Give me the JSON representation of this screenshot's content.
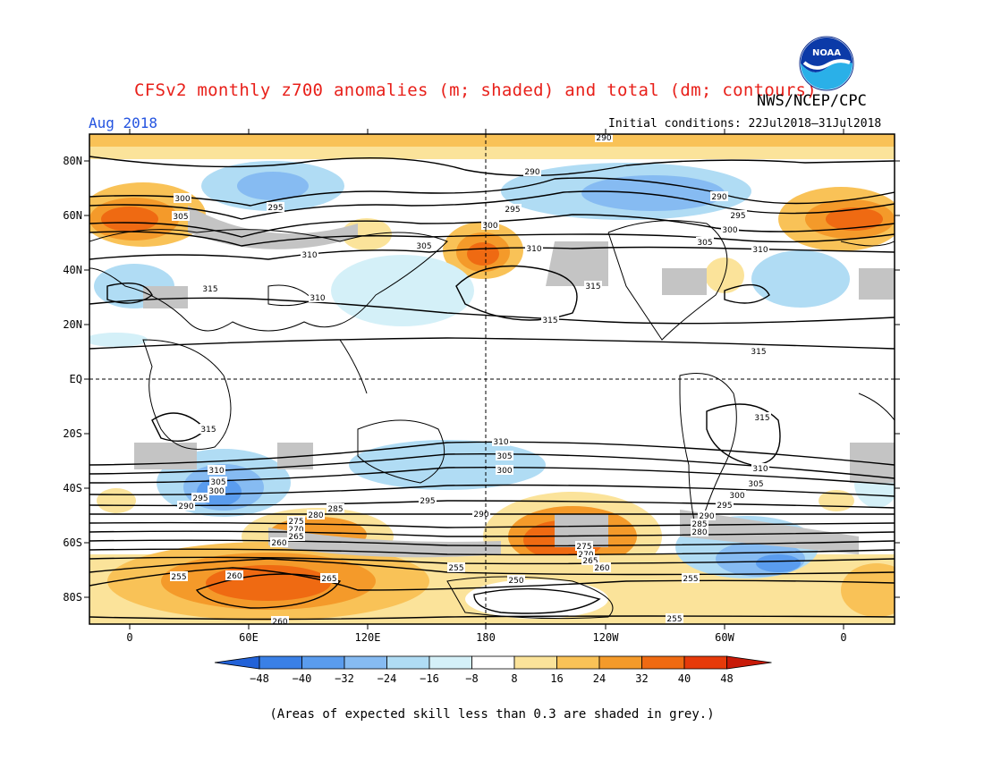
{
  "title": "CFSv2 monthly z700 anomalies (m; shaded) and total (dm; contours)",
  "agency": "NWS/NCEP/CPC",
  "logo_text": "NOAA",
  "month": "Aug 2018",
  "initial_conditions": "Initial conditions: 22Jul2018–31Jul2018",
  "footnote": "(Areas of expected skill less than 0.3 are shaded in grey.)",
  "axes": {
    "lat_labels": [
      "80N",
      "60N",
      "40N",
      "20N",
      "EQ",
      "20S",
      "40S",
      "60S",
      "80S"
    ],
    "lon_labels": [
      "0",
      "60E",
      "120E",
      "180",
      "120W",
      "60W",
      "0"
    ]
  },
  "colorbar": {
    "ticks": [
      "−48",
      "−40",
      "−32",
      "−24",
      "−16",
      "−8",
      "8",
      "16",
      "24",
      "32",
      "40",
      "48"
    ],
    "colors": [
      "#2262d8",
      "#3a80e6",
      "#5a9cee",
      "#86bbf2",
      "#b0dcf4",
      "#d4f0f8",
      "#ffffff",
      "#fbe39a",
      "#f9c257",
      "#f49a2a",
      "#ef6a12",
      "#e63a0a",
      "#c81a08"
    ]
  },
  "colors": {
    "title": "#e8201a",
    "month": "#2454e0",
    "skill_grey": "#c4c4c4"
  },
  "contour_labels": {
    "c300a": "300",
    "c305a": "305",
    "c295a": "295",
    "c310a": "310",
    "c315a": "315",
    "c310b": "310",
    "c295b": "295",
    "c300b": "300",
    "c305b": "305",
    "c310c": "310",
    "c290a": "290",
    "c290b": "290",
    "c295c": "295",
    "c300c": "300",
    "c305c": "305",
    "c310d": "310",
    "c315b": "315",
    "c315c": "315",
    "c315d": "315",
    "c315e": "315",
    "c310e": "310",
    "c305d": "305",
    "c300d": "300",
    "c310f": "310",
    "c305e": "305",
    "c300e": "300",
    "c295d": "295",
    "c290c": "290",
    "c295e": "295",
    "c310g": "310",
    "c305f": "305",
    "c300f": "300",
    "c295f": "295",
    "c290d": "290",
    "c285a": "285",
    "c280a": "280",
    "c275a": "275",
    "c270a": "270",
    "c265a": "265",
    "c260a": "260",
    "c275b": "275",
    "c270b": "270",
    "c265b": "265",
    "c260b": "260",
    "c290e": "290",
    "c285b": "285",
    "c280b": "280",
    "c255a": "255",
    "c260c": "260",
    "c265c": "265",
    "c255b": "255",
    "c250a": "250",
    "c255c": "255",
    "c255d": "255",
    "c260d": "260",
    "c300g": "300",
    "c290f": "290"
  }
}
